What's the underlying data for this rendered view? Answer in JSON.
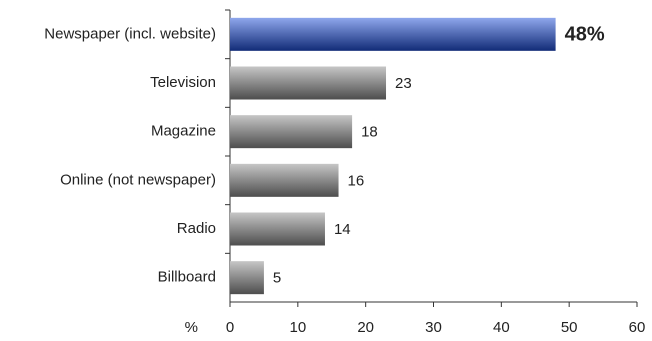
{
  "chart_data": {
    "type": "barh",
    "categories": [
      "Newspaper (incl. website)",
      "Television",
      "Magazine",
      "Online (not newspaper)",
      "Radio",
      "Billboard"
    ],
    "values": [
      48,
      23,
      18,
      16,
      14,
      5
    ],
    "value_labels": [
      "48%",
      "23",
      "18",
      "16",
      "14",
      "5"
    ],
    "colors": [
      "#1f4fd8",
      "#8c8c8c",
      "#8c8c8c",
      "#8c8c8c",
      "#8c8c8c",
      "#8c8c8c"
    ],
    "xlabel": "%",
    "xlim": [
      0,
      60
    ],
    "xticks": [
      0,
      10,
      20,
      30,
      40,
      50,
      60
    ],
    "grid": false
  }
}
